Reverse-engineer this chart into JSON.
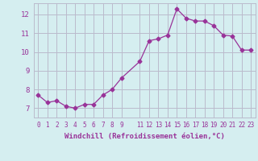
{
  "x": [
    0,
    1,
    2,
    3,
    4,
    5,
    6,
    7,
    8,
    9,
    11,
    12,
    13,
    14,
    15,
    16,
    17,
    18,
    19,
    20,
    21,
    22,
    23
  ],
  "y": [
    7.7,
    7.3,
    7.4,
    7.1,
    7.0,
    7.2,
    7.2,
    7.7,
    8.0,
    8.6,
    9.5,
    10.6,
    10.7,
    10.9,
    12.3,
    11.8,
    11.65,
    11.65,
    11.4,
    10.9,
    10.85,
    10.1,
    10.1
  ],
  "line_color": "#993399",
  "marker": "D",
  "marker_size": 2.5,
  "bg_color": "#d5eef0",
  "grid_color": "#bbbbcc",
  "xlabel": "Windchill (Refroidissement éolien,°C)",
  "ylabel": "",
  "xlim": [
    -0.5,
    23.5
  ],
  "ylim": [
    6.5,
    12.6
  ],
  "yticks": [
    7,
    8,
    9,
    10,
    11,
    12
  ],
  "xtick_positions": [
    0,
    1,
    2,
    3,
    4,
    5,
    6,
    7,
    8,
    9,
    11,
    12,
    13,
    14,
    15,
    16,
    17,
    18,
    19,
    20,
    21,
    22,
    23
  ],
  "xtick_labels": [
    "0",
    "1",
    "2",
    "3",
    "4",
    "5",
    "6",
    "7",
    "8",
    "9",
    "11",
    "12",
    "13",
    "14",
    "15",
    "16",
    "17",
    "18",
    "19",
    "20",
    "21",
    "22",
    "23"
  ],
  "tick_color": "#993399",
  "label_color": "#993399",
  "tick_fontsize": 5.5,
  "ylabel_fontsize": 6.0,
  "xlabel_fontsize": 6.5
}
